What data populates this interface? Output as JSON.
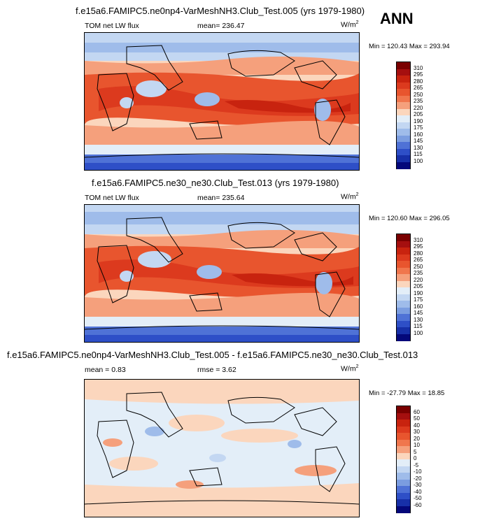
{
  "season": "ANN",
  "panels": [
    {
      "title": "f.e15a6.FAMIPC5.ne0np4-VarMeshNH3.Club_Test.005 (yrs 1979-1980)",
      "left_label": "TOM net LW flux",
      "center_label": "mean= 236.47",
      "units": "W/m",
      "units_sup": "2",
      "minmax": "Min = 120.43  Max = 293.94",
      "levels": [
        "310",
        "295",
        "280",
        "265",
        "250",
        "235",
        "220",
        "205",
        "190",
        "175",
        "160",
        "145",
        "130",
        "115",
        "100"
      ],
      "colors": [
        "#7a0000",
        "#a50f0f",
        "#c8230f",
        "#dc3a1e",
        "#e8552e",
        "#f0764d",
        "#f5a07c",
        "#fbd6bd",
        "#e3eef8",
        "#c3d7f2",
        "#9fbcea",
        "#7b9de0",
        "#4f72d6",
        "#2e4fc7",
        "#1730a8",
        "#04087a"
      ]
    },
    {
      "title": "f.e15a6.FAMIPC5.ne30_ne30.Club_Test.013 (yrs 1979-1980)",
      "left_label": "TOM net LW flux",
      "center_label": "mean= 235.64",
      "units": "W/m",
      "units_sup": "2",
      "minmax": "Min = 120.60  Max = 296.05",
      "levels": [
        "310",
        "295",
        "280",
        "265",
        "250",
        "235",
        "220",
        "205",
        "190",
        "175",
        "160",
        "145",
        "130",
        "115",
        "100"
      ],
      "colors": [
        "#7a0000",
        "#a50f0f",
        "#c8230f",
        "#dc3a1e",
        "#e8552e",
        "#f0764d",
        "#f5a07c",
        "#fbd6bd",
        "#e3eef8",
        "#c3d7f2",
        "#9fbcea",
        "#7b9de0",
        "#4f72d6",
        "#2e4fc7",
        "#1730a8",
        "#04087a"
      ]
    },
    {
      "title": "f.e15a6.FAMIPC5.ne0np4-VarMeshNH3.Club_Test.005 - f.e15a6.FAMIPC5.ne30_ne30.Club_Test.013",
      "left_label": "mean =   0.83",
      "center_label": "rmse =   3.62",
      "units": "W/m",
      "units_sup": "2",
      "minmax": "Min = -27.79  Max =  18.85",
      "levels": [
        "60",
        "50",
        "40",
        "30",
        "20",
        "10",
        "5",
        "0",
        "-5",
        "-10",
        "-20",
        "-30",
        "-40",
        "-50",
        "-60"
      ],
      "colors": [
        "#7a0000",
        "#a50f0f",
        "#c8230f",
        "#dc3a1e",
        "#e8552e",
        "#f0764d",
        "#f5a07c",
        "#fbd6bd",
        "#e3eef8",
        "#c3d7f2",
        "#9fbcea",
        "#7b9de0",
        "#4f72d6",
        "#2e4fc7",
        "#1730a8",
        "#04087a"
      ]
    }
  ]
}
